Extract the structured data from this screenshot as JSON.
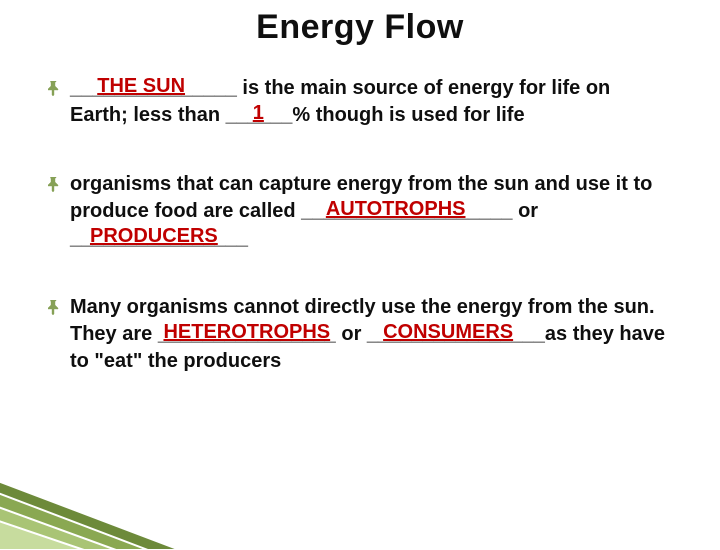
{
  "title": {
    "text": "Energy Flow",
    "fontsize": 34,
    "color": "#0f0f0f"
  },
  "body": {
    "fontsize": 20,
    "color": "#0f0f0f",
    "fontweight": "bold"
  },
  "fill_color": "#c00000",
  "bullets": [
    {
      "segments": [
        {
          "type": "blank",
          "blank": "_______________",
          "fill": "THE SUN",
          "fill_offset_pct": -14
        },
        {
          "type": "text",
          "text": " is the main source of energy for life on Earth; less than "
        },
        {
          "type": "blank",
          "blank": "______",
          "fill": "1",
          "fill_offset_pct": -6
        },
        {
          "type": "text",
          "text": "% though is used for life"
        }
      ]
    },
    {
      "segments": [
        {
          "type": "text",
          "text": "organisms that can capture energy from the sun and use it to produce food are called "
        },
        {
          "type": "blank",
          "blank": "___________________",
          "fill": "AUTOTROPHS",
          "fill_offset_pct": -8
        },
        {
          "type": "text",
          "text": " or  "
        },
        {
          "type": "blank",
          "blank": "________________",
          "fill": "PRODUCERS",
          "fill_offset_pct": -4
        }
      ]
    },
    {
      "segments": [
        {
          "type": "text",
          "text": "Many organisms cannot directly use the energy from the sun.  They are "
        },
        {
          "type": "blank",
          "blank": "________________",
          "fill": "HETEROTROPHS",
          "fill_offset_pct": 0
        },
        {
          "type": "text",
          "text": "  or "
        },
        {
          "type": "blank",
          "blank": "________________",
          "fill": "CONSUMERS",
          "fill_offset_pct": -6
        },
        {
          "type": "text",
          "text": "as they have to \"eat\" the producers"
        }
      ]
    }
  ],
  "bullet_icon": {
    "stroke": "#87a157",
    "fill": "#87a157",
    "size": 11
  },
  "corner_accent": {
    "colors": [
      "#6d8a3a",
      "#8aa852",
      "#a9c475",
      "#c7dc9e"
    ],
    "stroke": "#ffffff"
  }
}
